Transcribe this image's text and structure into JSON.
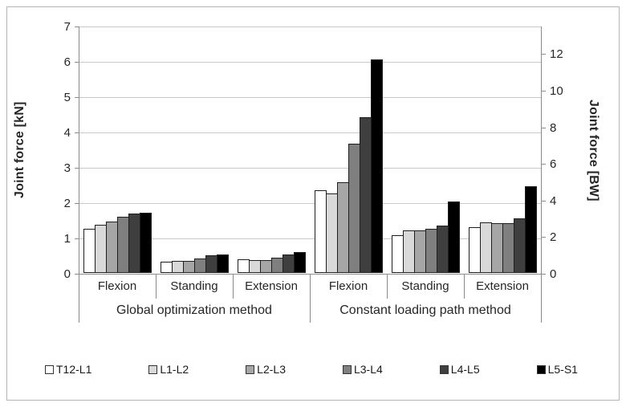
{
  "chart_data": {
    "type": "bar",
    "title": "",
    "left_axis": {
      "label": "Joint force [kN]",
      "min": 0,
      "max": 7,
      "ticks": [
        0,
        1,
        2,
        3,
        4,
        5,
        6,
        7
      ]
    },
    "right_axis": {
      "label": "Joint force [BW]",
      "min": 0,
      "max": 12,
      "ticks": [
        0,
        2,
        4,
        6,
        8,
        10,
        12
      ]
    },
    "grid": true,
    "legend_position": "bottom",
    "groups": [
      {
        "label": "Global optimization method",
        "categories": [
          "Flexion",
          "Standing",
          "Extension"
        ]
      },
      {
        "label": "Constant loading path method",
        "categories": [
          "Flexion",
          "Standing",
          "Extension"
        ]
      }
    ],
    "categories": [
      "Flexion | Global optimization method",
      "Standing | Global optimization method",
      "Extension | Global optimization method",
      "Flexion | Constant loading path method",
      "Standing | Constant loading path method",
      "Extension | Constant loading path method"
    ],
    "series": [
      {
        "name": "T12-L1",
        "color": "#ffffff",
        "values": [
          1.26,
          0.31,
          0.38,
          2.33,
          1.06,
          1.3
        ]
      },
      {
        "name": "L1-L2",
        "color": "#d9d9d9",
        "values": [
          1.36,
          0.35,
          0.36,
          2.26,
          1.2,
          1.43
        ]
      },
      {
        "name": "L2-L3",
        "color": "#a6a6a6",
        "values": [
          1.46,
          0.35,
          0.37,
          2.57,
          1.2,
          1.4
        ]
      },
      {
        "name": "L3-L4",
        "color": "#7f7f7f",
        "values": [
          1.58,
          0.41,
          0.43,
          3.67,
          1.25,
          1.4
        ]
      },
      {
        "name": "L4-L5",
        "color": "#3f3f3f",
        "values": [
          1.68,
          0.49,
          0.52,
          4.4,
          1.33,
          1.55
        ]
      },
      {
        "name": "L5-S1",
        "color": "#000000",
        "values": [
          1.71,
          0.52,
          0.58,
          6.05,
          2.03,
          2.45
        ]
      }
    ],
    "units_left": "kN",
    "units_right": "BW"
  },
  "style": {
    "gridline_color": "#c9c9c9",
    "axis_color": "#8c8c8c",
    "bar_border_color": "#1f1f1f",
    "frame_border_color": "#b5b5b5"
  }
}
